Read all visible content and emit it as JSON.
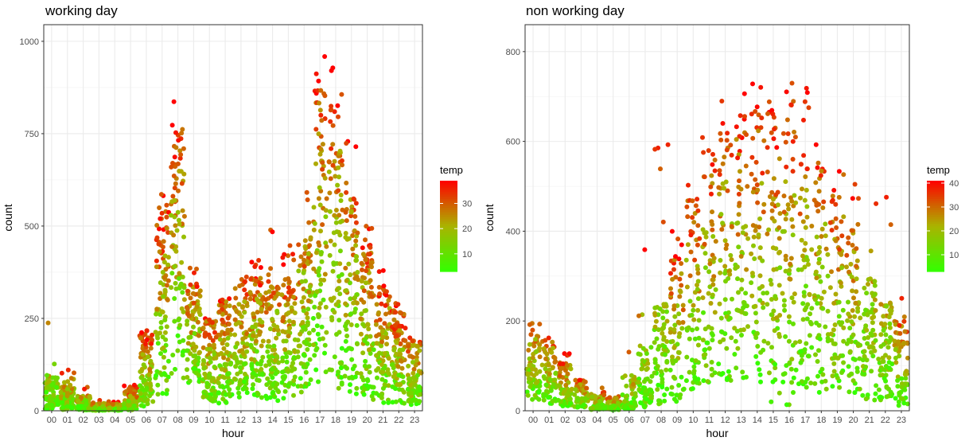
{
  "chart_data": [
    {
      "type": "scatter",
      "title": "working day",
      "xlabel": "hour",
      "ylabel": "count",
      "categories": [
        "00",
        "01",
        "02",
        "03",
        "04",
        "05",
        "06",
        "07",
        "08",
        "09",
        "10",
        "11",
        "12",
        "13",
        "14",
        "15",
        "16",
        "17",
        "18",
        "19",
        "20",
        "21",
        "22",
        "23"
      ],
      "ylim": [
        0,
        1000
      ],
      "yticks": [
        0,
        250,
        500,
        750,
        1000
      ],
      "grid": true,
      "legend": {
        "title": "temp",
        "ticks": [
          10,
          20,
          30
        ],
        "range": [
          3,
          39
        ],
        "low_color": "#33FF00",
        "mid_color": "#AAB300",
        "high_color": "#FF0000",
        "placement": "right"
      },
      "profile": [
        {
          "hour": "00",
          "low": 5,
          "mid": 40,
          "high": 100,
          "max": 283
        },
        {
          "hour": "01",
          "low": 3,
          "mid": 25,
          "high": 70,
          "max": 115
        },
        {
          "hour": "02",
          "low": 2,
          "mid": 12,
          "high": 40,
          "max": 75
        },
        {
          "hour": "03",
          "low": 1,
          "mid": 6,
          "high": 20,
          "max": 30
        },
        {
          "hour": "04",
          "low": 1,
          "mid": 6,
          "high": 18,
          "max": 25
        },
        {
          "hour": "05",
          "low": 2,
          "mid": 22,
          "high": 55,
          "max": 70
        },
        {
          "hour": "06",
          "low": 10,
          "mid": 100,
          "high": 210,
          "max": 240
        },
        {
          "hour": "07",
          "low": 40,
          "mid": 330,
          "high": 530,
          "max": 590
        },
        {
          "hour": "08",
          "low": 80,
          "mid": 470,
          "high": 760,
          "max": 840
        },
        {
          "hour": "09",
          "low": 60,
          "mid": 230,
          "high": 350,
          "max": 410
        },
        {
          "hour": "10",
          "low": 20,
          "mid": 130,
          "high": 250,
          "max": 290
        },
        {
          "hour": "11",
          "low": 20,
          "mid": 150,
          "high": 300,
          "max": 360
        },
        {
          "hour": "12",
          "low": 30,
          "mid": 185,
          "high": 360,
          "max": 410
        },
        {
          "hour": "13",
          "low": 30,
          "mid": 185,
          "high": 360,
          "max": 420
        },
        {
          "hour": "14",
          "low": 25,
          "mid": 170,
          "high": 350,
          "max": 490
        },
        {
          "hour": "15",
          "low": 25,
          "mid": 190,
          "high": 380,
          "max": 460
        },
        {
          "hour": "16",
          "low": 40,
          "mid": 280,
          "high": 520,
          "max": 630
        },
        {
          "hour": "17",
          "low": 60,
          "mid": 500,
          "high": 880,
          "max": 970
        },
        {
          "hour": "18",
          "low": 60,
          "mid": 480,
          "high": 860,
          "max": 975
        },
        {
          "hour": "19",
          "low": 40,
          "mid": 330,
          "high": 580,
          "max": 745
        },
        {
          "hour": "20",
          "low": 30,
          "mid": 240,
          "high": 450,
          "max": 510
        },
        {
          "hour": "21",
          "low": 20,
          "mid": 180,
          "high": 340,
          "max": 390
        },
        {
          "hour": "22",
          "low": 15,
          "mid": 140,
          "high": 270,
          "max": 300
        },
        {
          "hour": "23",
          "low": 10,
          "mid": 90,
          "high": 200,
          "max": 250
        }
      ]
    },
    {
      "type": "scatter",
      "title": "non working day",
      "xlabel": "hour",
      "ylabel": "count",
      "categories": [
        "00",
        "01",
        "02",
        "03",
        "04",
        "05",
        "06",
        "07",
        "08",
        "09",
        "10",
        "11",
        "12",
        "13",
        "14",
        "15",
        "16",
        "17",
        "18",
        "19",
        "20",
        "21",
        "22",
        "23"
      ],
      "ylim": [
        0,
        800
      ],
      "yticks": [
        0,
        200,
        400,
        600,
        800
      ],
      "grid": true,
      "legend": {
        "title": "temp",
        "ticks": [
          10,
          20,
          30,
          40
        ],
        "range": [
          3,
          41
        ],
        "low_color": "#33FF00",
        "mid_color": "#AAB300",
        "high_color": "#FF0000",
        "placement": "right"
      },
      "profile": [
        {
          "hour": "00",
          "low": 20,
          "mid": 90,
          "high": 180,
          "max": 250
        },
        {
          "hour": "01",
          "low": 15,
          "mid": 70,
          "high": 150,
          "max": 190
        },
        {
          "hour": "02",
          "low": 10,
          "mid": 55,
          "high": 110,
          "max": 135
        },
        {
          "hour": "03",
          "low": 5,
          "mid": 30,
          "high": 70,
          "max": 85
        },
        {
          "hour": "04",
          "low": 2,
          "mid": 12,
          "high": 35,
          "max": 55
        },
        {
          "hour": "05",
          "low": 2,
          "mid": 10,
          "high": 30,
          "max": 45
        },
        {
          "hour": "06",
          "low": 3,
          "mid": 20,
          "high": 80,
          "max": 145
        },
        {
          "hour": "07",
          "low": 8,
          "mid": 50,
          "high": 150,
          "max": 390
        },
        {
          "hour": "08",
          "low": 15,
          "mid": 110,
          "high": 250,
          "max": 600
        },
        {
          "hour": "09",
          "low": 20,
          "mid": 170,
          "high": 350,
          "max": 400
        },
        {
          "hour": "10",
          "low": 40,
          "mid": 230,
          "high": 470,
          "max": 520
        },
        {
          "hour": "11",
          "low": 50,
          "mid": 290,
          "high": 580,
          "max": 630
        },
        {
          "hour": "12",
          "low": 60,
          "mid": 340,
          "high": 650,
          "max": 755
        },
        {
          "hour": "13",
          "low": 60,
          "mid": 360,
          "high": 680,
          "max": 730
        },
        {
          "hour": "14",
          "low": 60,
          "mid": 360,
          "high": 680,
          "max": 730
        },
        {
          "hour": "15",
          "low": 10,
          "mid": 350,
          "high": 670,
          "max": 720
        },
        {
          "hour": "16",
          "low": 10,
          "mid": 340,
          "high": 650,
          "max": 780
        },
        {
          "hour": "17",
          "low": 40,
          "mid": 310,
          "high": 600,
          "max": 730
        },
        {
          "hour": "18",
          "low": 40,
          "mid": 280,
          "high": 540,
          "max": 680
        },
        {
          "hour": "19",
          "low": 30,
          "mid": 250,
          "high": 480,
          "max": 560
        },
        {
          "hour": "20",
          "low": 30,
          "mid": 220,
          "high": 420,
          "max": 550
        },
        {
          "hour": "21",
          "low": 20,
          "mid": 160,
          "high": 320,
          "max": 585
        },
        {
          "hour": "22",
          "low": 15,
          "mid": 120,
          "high": 250,
          "max": 500
        },
        {
          "hour": "23",
          "low": 10,
          "mid": 90,
          "high": 200,
          "max": 260
        }
      ]
    }
  ]
}
